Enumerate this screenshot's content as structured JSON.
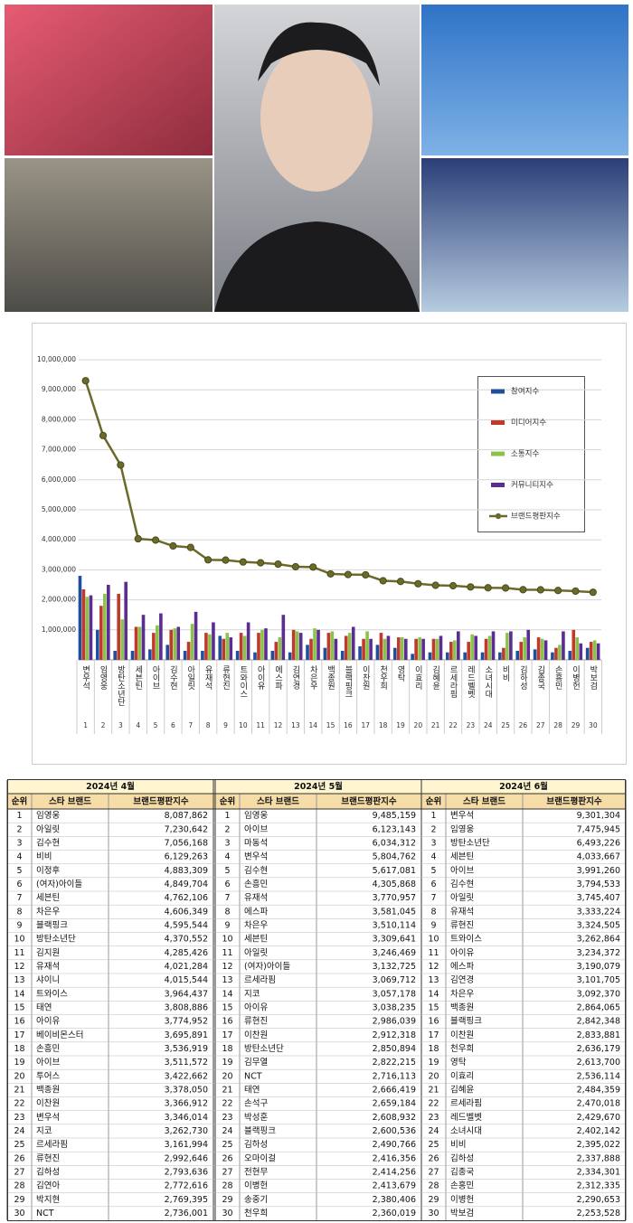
{
  "chart_data": {
    "type": "bar",
    "categories": [
      "변우석",
      "임영웅",
      "방탄소년단",
      "세븐틴",
      "아이브",
      "김수현",
      "아일릿",
      "유재석",
      "류현진",
      "트와이스",
      "아이유",
      "에스파",
      "김연경",
      "차은우",
      "백종원",
      "블랙핑크",
      "이찬원",
      "천우희",
      "영탁",
      "이효리",
      "김혜윤",
      "르세라핌",
      "레드벨벳",
      "소녀시대",
      "비비",
      "김하성",
      "김종국",
      "손흥민",
      "이병헌",
      "박보검"
    ],
    "rank_labels": [
      1,
      2,
      3,
      4,
      5,
      6,
      7,
      8,
      9,
      10,
      11,
      12,
      13,
      14,
      15,
      16,
      17,
      18,
      19,
      20,
      21,
      22,
      23,
      24,
      25,
      26,
      27,
      28,
      29,
      30
    ],
    "series": [
      {
        "name": "참여지수",
        "color": "#1f4e9c",
        "type": "bar",
        "values": [
          2800000,
          1000000,
          300000,
          300000,
          350000,
          500000,
          300000,
          300000,
          800000,
          300000,
          250000,
          300000,
          250000,
          500000,
          400000,
          300000,
          450000,
          500000,
          400000,
          200000,
          250000,
          250000,
          250000,
          250000,
          250000,
          300000,
          350000,
          250000,
          300000,
          400000
        ]
      },
      {
        "name": "미디어지수",
        "color": "#c0392b",
        "type": "bar",
        "values": [
          2350000,
          1800000,
          2200000,
          1100000,
          900000,
          1000000,
          600000,
          900000,
          700000,
          900000,
          900000,
          600000,
          1000000,
          700000,
          900000,
          800000,
          700000,
          900000,
          750000,
          700000,
          700000,
          600000,
          600000,
          700000,
          400000,
          600000,
          750000,
          400000,
          1000000,
          600000
        ]
      },
      {
        "name": "소통지수",
        "color": "#8bc34a",
        "type": "bar",
        "values": [
          2100000,
          2200000,
          1350000,
          1100000,
          1150000,
          1050000,
          1200000,
          850000,
          900000,
          800000,
          1000000,
          750000,
          950000,
          1050000,
          950000,
          900000,
          950000,
          700000,
          750000,
          750000,
          700000,
          650000,
          850000,
          800000,
          900000,
          750000,
          700000,
          500000,
          750000,
          650000
        ]
      },
      {
        "name": "커뮤니티지수",
        "color": "#5b2c91",
        "type": "bar",
        "values": [
          2150000,
          2500000,
          2600000,
          1500000,
          1550000,
          1100000,
          1600000,
          1250000,
          750000,
          1250000,
          1050000,
          1500000,
          900000,
          1000000,
          700000,
          1100000,
          700000,
          800000,
          700000,
          700000,
          800000,
          950000,
          800000,
          950000,
          950000,
          1000000,
          650000,
          950000,
          550000,
          550000
        ]
      },
      {
        "name": "브랜드평판지수",
        "color": "#6b6a2b",
        "type": "line",
        "values": [
          9301304,
          7475945,
          6493226,
          4033667,
          3991260,
          3794533,
          3745407,
          3333224,
          3324505,
          3262864,
          3234372,
          3190079,
          3101705,
          3092370,
          2864065,
          2842348,
          2833881,
          2636179,
          2613700,
          2536114,
          2484359,
          2470018,
          2429670,
          2402142,
          2395022,
          2337888,
          2334301,
          2312335,
          2290653,
          2253528
        ]
      }
    ],
    "ylim": [
      0,
      10000000
    ],
    "yticks": [
      {
        "value": 1000000,
        "label": "1,000,000"
      },
      {
        "value": 2000000,
        "label": "2,000,000"
      },
      {
        "value": 3000000,
        "label": "3,000,000"
      },
      {
        "value": 4000000,
        "label": "4,000,000"
      },
      {
        "value": 5000000,
        "label": "5,000,000"
      },
      {
        "value": 6000000,
        "label": "6,000,000"
      },
      {
        "value": 7000000,
        "label": "7,000,000"
      },
      {
        "value": 8000000,
        "label": "8,000,000"
      },
      {
        "value": 9000000,
        "label": "9,000,000"
      },
      {
        "value": 10000000,
        "label": "10,000,000"
      }
    ],
    "grid": true,
    "legend": "right"
  },
  "table": {
    "columns": [
      "순위",
      "스타 브랜드",
      "브랜드평판지수"
    ],
    "groups": [
      {
        "month": "2024년 4월",
        "rows": [
          [
            1,
            "임영웅",
            "8,087,862"
          ],
          [
            2,
            "아일릿",
            "7,230,642"
          ],
          [
            3,
            "김수현",
            "7,056,168"
          ],
          [
            4,
            "비비",
            "6,129,263"
          ],
          [
            5,
            "이정후",
            "4,883,309"
          ],
          [
            6,
            "(여자)아이들",
            "4,849,704"
          ],
          [
            7,
            "세븐틴",
            "4,762,106"
          ],
          [
            8,
            "차은우",
            "4,606,349"
          ],
          [
            9,
            "블랙핑크",
            "4,595,544"
          ],
          [
            10,
            "방탄소년단",
            "4,370,552"
          ],
          [
            11,
            "김지원",
            "4,285,426"
          ],
          [
            12,
            "유재석",
            "4,021,284"
          ],
          [
            13,
            "샤이니",
            "4,015,544"
          ],
          [
            14,
            "트와이스",
            "3,964,437"
          ],
          [
            15,
            "태연",
            "3,808,886"
          ],
          [
            16,
            "아이유",
            "3,774,952"
          ],
          [
            17,
            "베이비몬스터",
            "3,695,891"
          ],
          [
            18,
            "손흥민",
            "3,536,919"
          ],
          [
            19,
            "아이브",
            "3,511,572"
          ],
          [
            20,
            "투어스",
            "3,422,662"
          ],
          [
            21,
            "백종원",
            "3,378,050"
          ],
          [
            22,
            "이찬원",
            "3,366,912"
          ],
          [
            23,
            "변우석",
            "3,346,014"
          ],
          [
            24,
            "지코",
            "3,262,730"
          ],
          [
            25,
            "르세라핌",
            "3,161,994"
          ],
          [
            26,
            "류현진",
            "2,992,646"
          ],
          [
            27,
            "김하성",
            "2,793,636"
          ],
          [
            28,
            "김연아",
            "2,772,616"
          ],
          [
            29,
            "박지현",
            "2,769,395"
          ],
          [
            30,
            "NCT",
            "2,736,001"
          ]
        ]
      },
      {
        "month": "2024년 5월",
        "rows": [
          [
            1,
            "임영웅",
            "9,485,159"
          ],
          [
            2,
            "아이브",
            "6,123,143"
          ],
          [
            3,
            "마동석",
            "6,034,312"
          ],
          [
            4,
            "변우석",
            "5,804,762"
          ],
          [
            5,
            "김수현",
            "5,617,081"
          ],
          [
            6,
            "손흥민",
            "4,305,868"
          ],
          [
            7,
            "유재석",
            "3,770,957"
          ],
          [
            8,
            "에스파",
            "3,581,045"
          ],
          [
            9,
            "차은우",
            "3,510,114"
          ],
          [
            10,
            "세븐틴",
            "3,309,641"
          ],
          [
            11,
            "아일릿",
            "3,246,469"
          ],
          [
            12,
            "(여자)아이들",
            "3,132,725"
          ],
          [
            13,
            "르세라핌",
            "3,069,712"
          ],
          [
            14,
            "지코",
            "3,057,178"
          ],
          [
            15,
            "아이유",
            "3,038,235"
          ],
          [
            16,
            "류현진",
            "2,986,039"
          ],
          [
            17,
            "이찬원",
            "2,912,318"
          ],
          [
            18,
            "방탄소년단",
            "2,850,894"
          ],
          [
            19,
            "김무열",
            "2,822,215"
          ],
          [
            20,
            "NCT",
            "2,716,113"
          ],
          [
            21,
            "태연",
            "2,666,419"
          ],
          [
            22,
            "손석구",
            "2,659,184"
          ],
          [
            23,
            "박성훈",
            "2,608,932"
          ],
          [
            24,
            "블랙핑크",
            "2,600,536"
          ],
          [
            25,
            "김하성",
            "2,490,766"
          ],
          [
            26,
            "오마이걸",
            "2,416,356"
          ],
          [
            27,
            "전현무",
            "2,414,256"
          ],
          [
            28,
            "이병헌",
            "2,413,679"
          ],
          [
            29,
            "송중기",
            "2,380,406"
          ],
          [
            30,
            "천우희",
            "2,360,019"
          ]
        ]
      },
      {
        "month": "2024년 6월",
        "rows": [
          [
            1,
            "변우석",
            "9,301,304"
          ],
          [
            2,
            "임영웅",
            "7,475,945"
          ],
          [
            3,
            "방탄소년단",
            "6,493,226"
          ],
          [
            4,
            "세븐틴",
            "4,033,667"
          ],
          [
            5,
            "아이브",
            "3,991,260"
          ],
          [
            6,
            "김수현",
            "3,794,533"
          ],
          [
            7,
            "아일릿",
            "3,745,407"
          ],
          [
            8,
            "유재석",
            "3,333,224"
          ],
          [
            9,
            "류현진",
            "3,324,505"
          ],
          [
            10,
            "트와이스",
            "3,262,864"
          ],
          [
            11,
            "아이유",
            "3,234,372"
          ],
          [
            12,
            "에스파",
            "3,190,079"
          ],
          [
            13,
            "김연경",
            "3,101,705"
          ],
          [
            14,
            "차은우",
            "3,092,370"
          ],
          [
            15,
            "백종원",
            "2,864,065"
          ],
          [
            16,
            "블랙핑크",
            "2,842,348"
          ],
          [
            17,
            "이찬원",
            "2,833,881"
          ],
          [
            18,
            "천우희",
            "2,636,179"
          ],
          [
            19,
            "영탁",
            "2,613,700"
          ],
          [
            20,
            "이효리",
            "2,536,114"
          ],
          [
            21,
            "김혜윤",
            "2,484,359"
          ],
          [
            22,
            "르세라핌",
            "2,470,018"
          ],
          [
            23,
            "레드벨벳",
            "2,429,670"
          ],
          [
            24,
            "소녀시대",
            "2,402,142"
          ],
          [
            25,
            "비비",
            "2,395,022"
          ],
          [
            26,
            "김하성",
            "2,337,888"
          ],
          [
            27,
            "김종국",
            "2,334,301"
          ],
          [
            28,
            "손흥민",
            "2,312,335"
          ],
          [
            29,
            "이병헌",
            "2,290,653"
          ],
          [
            30,
            "박보검",
            "2,253,528"
          ]
        ]
      }
    ]
  }
}
